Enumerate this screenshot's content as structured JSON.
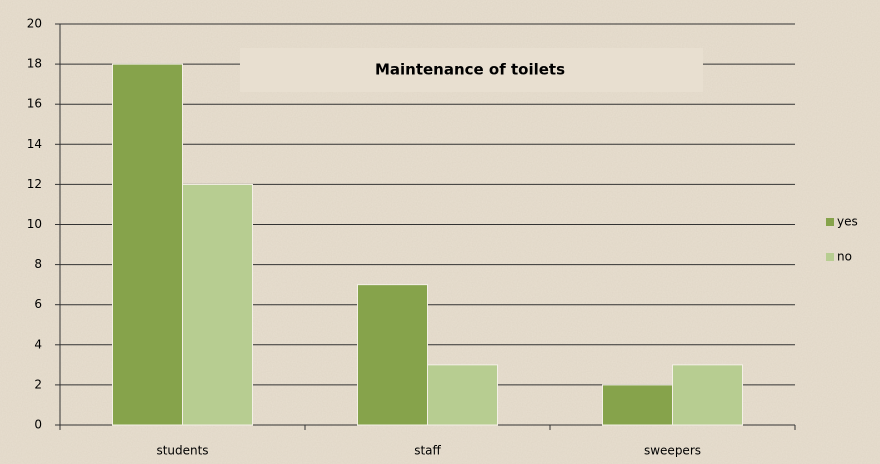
{
  "chart_data": {
    "type": "bar",
    "title": "Maintenance of toilets",
    "categories": [
      "students",
      "staff",
      "sweepers"
    ],
    "series": [
      {
        "name": "yes",
        "color": "#86a34b",
        "values": [
          18,
          7,
          2
        ]
      },
      {
        "name": "no",
        "color": "#b7cd91",
        "values": [
          12,
          3,
          3
        ]
      }
    ],
    "ylim": [
      0,
      20
    ],
    "yticks": [
      0,
      2,
      4,
      6,
      8,
      10,
      12,
      14,
      16,
      18,
      20
    ],
    "grid": true,
    "legend": "right"
  }
}
